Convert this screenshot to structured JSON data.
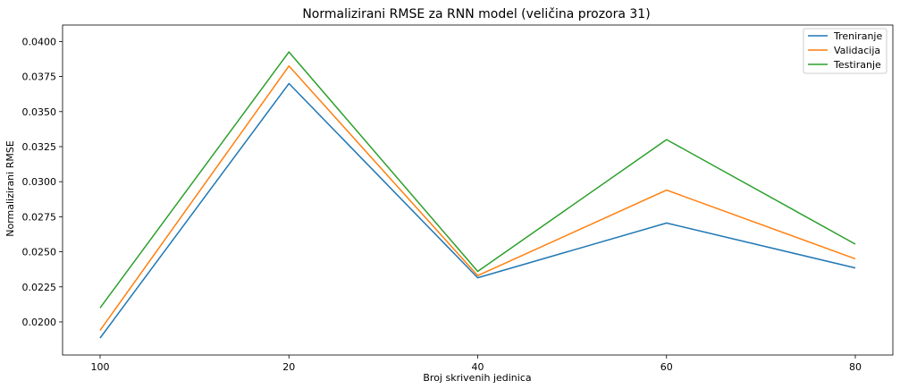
{
  "chart_data": {
    "type": "line",
    "title": "Normalizirani RMSE za RNN model (veličina prozora 31)",
    "xlabel": "Broj skrivenih jedinica",
    "ylabel": "Normalizirani RMSE",
    "categories": [
      "100",
      "20",
      "40",
      "60",
      "80"
    ],
    "yticks": [
      "0.0200",
      "0.0225",
      "0.0250",
      "0.0275",
      "0.0300",
      "0.0325",
      "0.0350",
      "0.0375",
      "0.0400"
    ],
    "ylim": [
      0.01885,
      0.04028
    ],
    "grid": false,
    "legend_position": "top-right",
    "series": [
      {
        "name": "Treniranje",
        "color": "#1f77b4",
        "values": [
          0.01885,
          0.037,
          0.02315,
          0.02705,
          0.02385
        ]
      },
      {
        "name": "Validacija",
        "color": "#ff7f0e",
        "values": [
          0.0194,
          0.03825,
          0.0233,
          0.0294,
          0.0245
        ]
      },
      {
        "name": "Testiranje",
        "color": "#2ca02c",
        "values": [
          0.021,
          0.03925,
          0.0236,
          0.033,
          0.02555
        ]
      }
    ]
  }
}
